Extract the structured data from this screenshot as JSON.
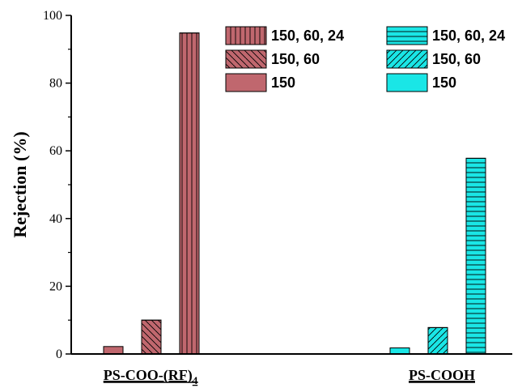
{
  "chart_data": {
    "type": "bar",
    "ylabel": "Rejection (%)",
    "xlabel": "",
    "title": "",
    "ylim": [
      0,
      100
    ],
    "yticks": [
      0,
      20,
      40,
      60,
      80,
      100
    ],
    "grid": false,
    "legend_position": "top-right",
    "groups": [
      {
        "label": "PS-COO-(RF)",
        "label_subscript": "4",
        "color": "#C0676E",
        "bars": [
          {
            "name": "150",
            "value": 2.2,
            "pattern": "solid"
          },
          {
            "name": "150, 60",
            "value": 10.0,
            "pattern": "backslash"
          },
          {
            "name": "150, 60, 24",
            "value": 94.8,
            "pattern": "vertical"
          }
        ]
      },
      {
        "label": "PS-COOH",
        "label_subscript": "",
        "color": "#1AE6E6",
        "bars": [
          {
            "name": "150",
            "value": 1.8,
            "pattern": "solid"
          },
          {
            "name": "150, 60",
            "value": 7.8,
            "pattern": "slash"
          },
          {
            "name": "150, 60, 24",
            "value": 57.8,
            "pattern": "horizontal"
          }
        ]
      }
    ],
    "legend_columns": [
      {
        "color": "#C0676E",
        "entries": [
          {
            "label": "150, 60, 24",
            "pattern": "vertical"
          },
          {
            "label": "150, 60",
            "pattern": "backslash"
          },
          {
            "label": "150",
            "pattern": "solid"
          }
        ]
      },
      {
        "color": "#1AE6E6",
        "entries": [
          {
            "label": "150, 60, 24",
            "pattern": "horizontal"
          },
          {
            "label": "150, 60",
            "pattern": "slash"
          },
          {
            "label": "150",
            "pattern": "solid"
          }
        ]
      }
    ]
  }
}
